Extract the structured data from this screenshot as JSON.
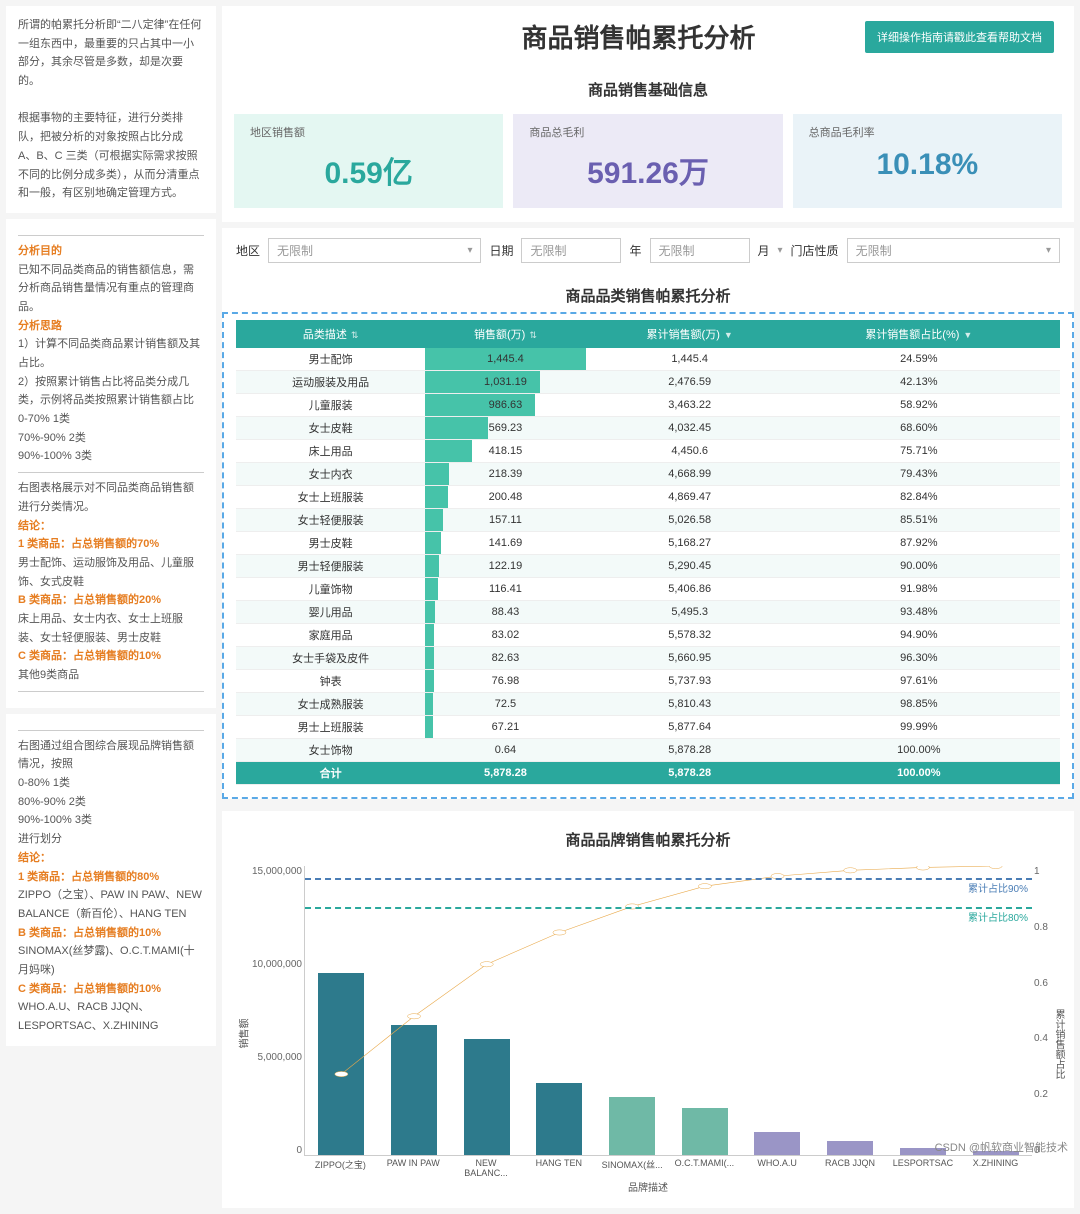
{
  "header": {
    "title": "商品销售帕累托分析",
    "help_button": "详细操作指南请戳此查看帮助文档"
  },
  "side_intro": {
    "p1": "所谓的帕累托分析即“二八定律”在任何一组东西中，最重要的只占其中一小部分，其余尽管是多数，却是次要的。",
    "p2": "根据事物的主要特征，进行分类排队，把被分析的对象按照占比分成 A、B、C 三类（可根据实际需求按照不同的比例分成多类），从而分清重点和一般，有区别地确定管理方式。"
  },
  "side_analysis": {
    "goal_h": "分析目的",
    "goal": "已知不同品类商品的销售额信息，需分析商品销售量情况有重点的管理商品。",
    "idea_h": "分析思路",
    "idea1": "1）计算不同品类商品累计销售额及其占比。",
    "idea2": "2）按照累计销售占比将品类分成几类，示例将品类按照累计销售额占比",
    "r1": "0-70% 1类",
    "r2": "70%-90% 2类",
    "r3": "90%-100% 3类",
    "mid": "右图表格展示对不同品类商品销售额进行分类情况。",
    "conc_h": "结论：",
    "a_h": "1 类商品：占总销售额的70%",
    "a_t": "男士配饰、运动服饰及用品、儿童服饰、女式皮鞋",
    "b_h": "B 类商品：占总销售额的20%",
    "b_t": "床上用品、女士内衣、女士上班服装、女士轻便服装、男士皮鞋",
    "c_h": "C 类商品：占总销售额的10%",
    "c_t": "其他9类商品"
  },
  "side_brand": {
    "p1": "右图通过组合图综合展现品牌销售额情况，按照",
    "r1": "0-80% 1类",
    "r2": "80%-90% 2类",
    "r3": "90%-100% 3类",
    "r4": "进行划分",
    "conc_h": "结论：",
    "a_h": "1 类商品：占总销售额的80%",
    "a_t": "ZIPPO（之宝）、PAW IN PAW、NEW BALANCE（新百伦）、HANG TEN",
    "b_h": "B 类商品：占总销售额的10%",
    "b_t": "SINOMAX(丝梦露)、O.C.T.MAMI(十月妈咪)",
    "c_h": "C 类商品：占总销售额的10%",
    "c_t": "WHO.A.U、RACB JJQN、LESPORTSAC、X.ZHINING"
  },
  "basic_info": {
    "title": "商品销售基础信息",
    "kpis": [
      {
        "label": "地区销售额",
        "value": "0.59亿",
        "bg": "#e4f7f2",
        "color": "#2aa89d"
      },
      {
        "label": "商品总毛利",
        "value": "591.26万",
        "bg": "#eceaf6",
        "color": "#6a5fb0"
      },
      {
        "label": "总商品毛利率",
        "value": "10.18%",
        "bg": "#eaf3f8",
        "color": "#3a8fb7"
      }
    ]
  },
  "filters": {
    "region_label": "地区",
    "region_ph": "无限制",
    "date_label": "日期",
    "date_ph": "无限制",
    "year_suffix": "年",
    "month_suffix": "月 ",
    "store_label": "门店性质",
    "store_ph": "无限制"
  },
  "category_table": {
    "title": "商品品类销售帕累托分析",
    "columns": [
      "品类描述",
      "销售额(万)",
      "累计销售额(万)",
      "累计销售额占比(%)"
    ],
    "max_bar": 1445.4,
    "bar_color": "#46c3a9",
    "header_bg": "#2aa89d",
    "rows": [
      [
        "男士配饰",
        "1,445.4",
        "1,445.4",
        "24.59%",
        1445.4
      ],
      [
        "运动服装及用品",
        "1,031.19",
        "2,476.59",
        "42.13%",
        1031.19
      ],
      [
        "儿童服装",
        "986.63",
        "3,463.22",
        "58.92%",
        986.63
      ],
      [
        "女士皮鞋",
        "569.23",
        "4,032.45",
        "68.60%",
        569.23
      ],
      [
        "床上用品",
        "418.15",
        "4,450.6",
        "75.71%",
        418.15
      ],
      [
        "女士内衣",
        "218.39",
        "4,668.99",
        "79.43%",
        218.39
      ],
      [
        "女士上班服装",
        "200.48",
        "4,869.47",
        "82.84%",
        200.48
      ],
      [
        "女士轻便服装",
        "157.11",
        "5,026.58",
        "85.51%",
        157.11
      ],
      [
        "男士皮鞋",
        "141.69",
        "5,168.27",
        "87.92%",
        141.69
      ],
      [
        "男士轻便服装",
        "122.19",
        "5,290.45",
        "90.00%",
        122.19
      ],
      [
        "儿童饰物",
        "116.41",
        "5,406.86",
        "91.98%",
        116.41
      ],
      [
        "婴儿用品",
        "88.43",
        "5,495.3",
        "93.48%",
        88.43
      ],
      [
        "家庭用品",
        "83.02",
        "5,578.32",
        "94.90%",
        83.02
      ],
      [
        "女士手袋及皮件",
        "82.63",
        "5,660.95",
        "96.30%",
        82.63
      ],
      [
        "钟表",
        "76.98",
        "5,737.93",
        "97.61%",
        76.98
      ],
      [
        "女士成熟服装",
        "72.5",
        "5,810.43",
        "98.85%",
        72.5
      ],
      [
        "男士上班服装",
        "67.21",
        "5,877.64",
        "99.99%",
        67.21
      ],
      [
        "女士饰物",
        "0.64",
        "5,878.28",
        "100.00%",
        0.64
      ]
    ],
    "total_label": "合计",
    "totals": [
      "5,878.28",
      "5,878.28",
      "100.00%"
    ]
  },
  "brand_chart": {
    "title": "商品品牌销售帕累托分析",
    "x_title": "品牌描述",
    "y_left_label": "销售额",
    "y_right_label": "累计销售额占比",
    "y_left_ticks": [
      "15,000,000",
      "10,000,000",
      "5,000,000",
      "0"
    ],
    "y_right_ticks": [
      "1",
      "0.8",
      "0.6",
      "0.4",
      "0.2",
      "0"
    ],
    "y_left_max": 16000000,
    "ref_lines": [
      {
        "label": "累计占比90%",
        "pct": 0.9,
        "color": "#4a7db5"
      },
      {
        "label": "累计占比80%",
        "pct": 0.8,
        "color": "#2aa89d"
      }
    ],
    "line_color": "#e9a94a",
    "bars": [
      {
        "label": "ZIPPO(之宝)",
        "value": 10100000,
        "cum": 0.28,
        "color": "#2d7a8c"
      },
      {
        "label": "PAW IN PAW",
        "value": 7200000,
        "cum": 0.48,
        "color": "#2d7a8c"
      },
      {
        "label": "NEW BALANC...",
        "value": 6400000,
        "cum": 0.66,
        "color": "#2d7a8c"
      },
      {
        "label": "HANG TEN",
        "value": 4000000,
        "cum": 0.77,
        "color": "#2d7a8c"
      },
      {
        "label": "SINOMAX(丝...",
        "value": 3200000,
        "cum": 0.86,
        "color": "#6fb9a6"
      },
      {
        "label": "O.C.T.MAMI(...",
        "value": 2600000,
        "cum": 0.93,
        "color": "#6fb9a6"
      },
      {
        "label": "WHO.A.U",
        "value": 1300000,
        "cum": 0.965,
        "color": "#9a95c6"
      },
      {
        "label": "RACB JJQN",
        "value": 800000,
        "cum": 0.985,
        "color": "#9a95c6"
      },
      {
        "label": "LESPORTSAC",
        "value": 400000,
        "cum": 0.995,
        "color": "#9a95c6"
      },
      {
        "label": "X.ZHINING",
        "value": 200000,
        "cum": 1.0,
        "color": "#9a95c6"
      }
    ]
  },
  "watermark": "CSDN @帆软商业智能技术"
}
